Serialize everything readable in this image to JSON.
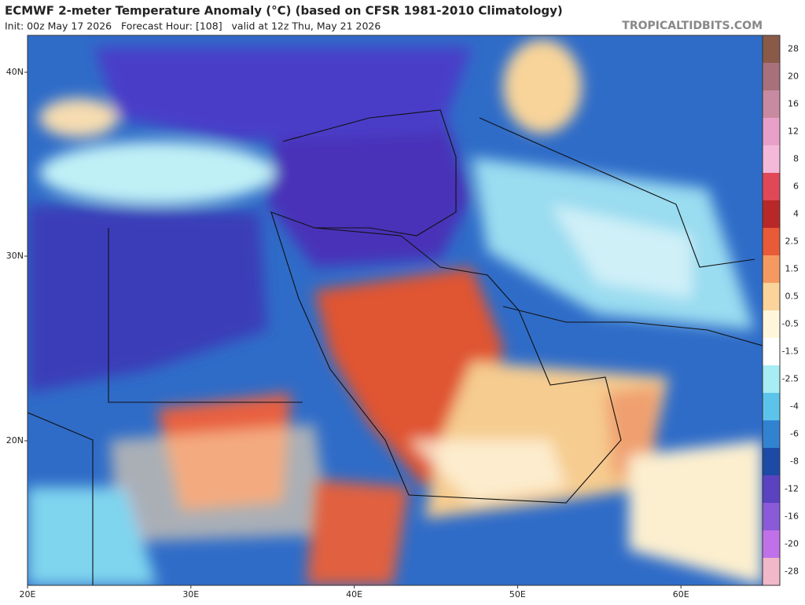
{
  "header": {
    "title": "ECMWF 2-meter Temperature Anomaly (°C) (based on CFSR 1981-2010 Climatology)",
    "subtitle": "Init: 00z May 17 2026   Forecast Hour: [108]   valid at 12z Thu, May 21 2026",
    "watermark": "TROPICALTIDBITS.COM"
  },
  "map": {
    "lat_labels": [
      "40N",
      "30N",
      "20N"
    ],
    "lon_labels": [
      "20E",
      "30E",
      "40E",
      "50E",
      "60E"
    ]
  },
  "colorbar": {
    "levels": [
      28,
      20,
      16,
      12,
      8,
      6,
      4,
      2.5,
      1.5,
      0.5,
      -0.5,
      -1.5,
      -2.5,
      -4,
      -6,
      -8,
      -12,
      -16,
      -20,
      -28
    ],
    "colors": [
      "#8a5a48",
      "#a8707a",
      "#c88aa0",
      "#e8a0c8",
      "#f4b8d8",
      "#e04858",
      "#b82828",
      "#e85a38",
      "#f49a60",
      "#fad49a",
      "#fff6dc",
      "#ffffff",
      "#a8ecf4",
      "#5cc4ea",
      "#3282d2",
      "#1c4aa6",
      "#5a42c0",
      "#8a5ad8",
      "#c070e8",
      "#f0b8c8"
    ]
  }
}
